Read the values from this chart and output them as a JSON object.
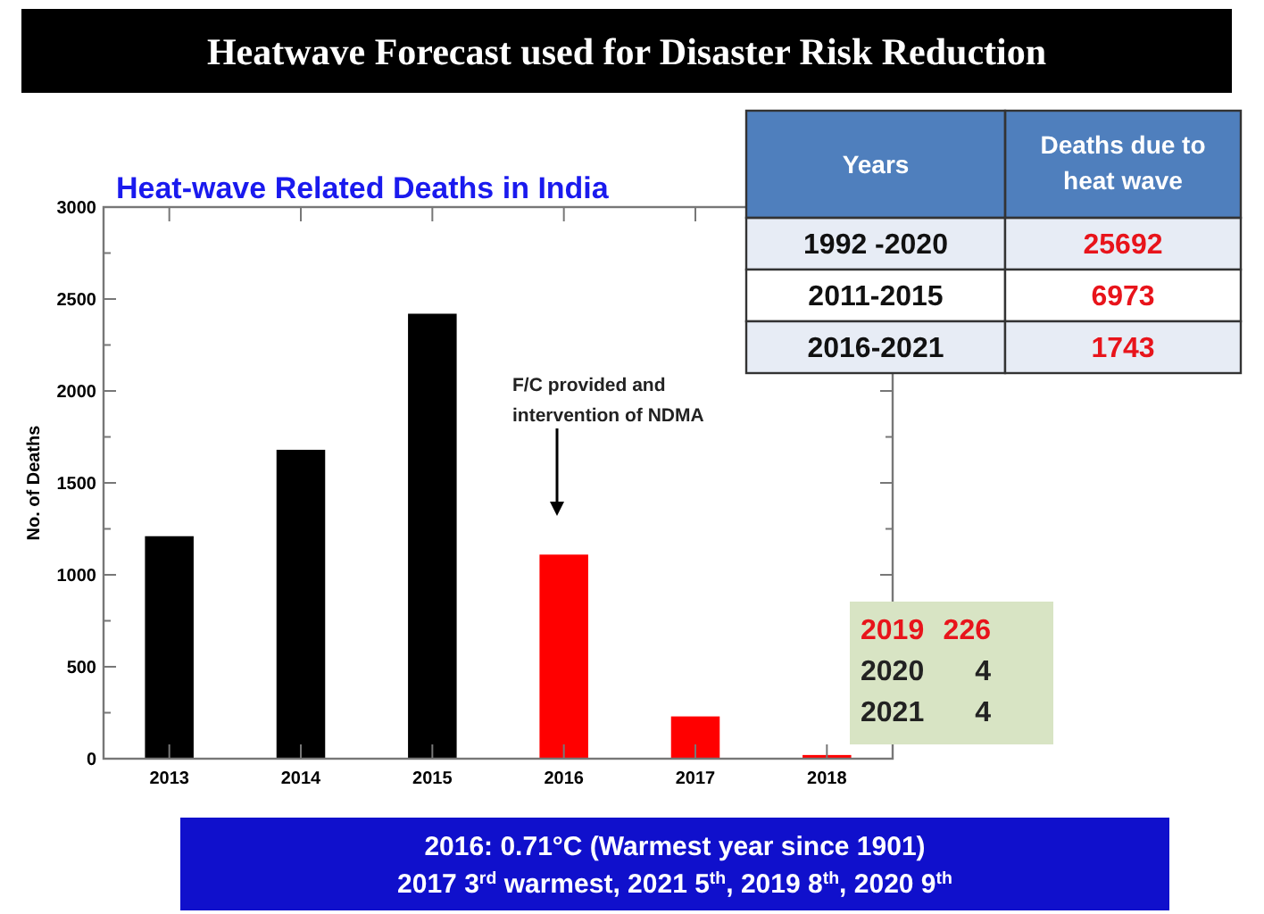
{
  "chart_data": {
    "type": "bar",
    "title": "Heatwave Forecast used for Disaster Risk Reduction",
    "subtitle": "Heat-wave Related Deaths in India",
    "ylabel": "No. of Deaths",
    "categories": [
      "2013",
      "2014",
      "2015",
      "2016",
      "2017",
      "2018"
    ],
    "values": [
      1210,
      1680,
      2420,
      1110,
      230,
      20
    ],
    "colors": [
      "#000000",
      "#000000",
      "#000000",
      "#ff0000",
      "#ff0000",
      "#ff0000"
    ],
    "ylim": [
      0,
      3000
    ],
    "yticks": [
      0,
      {
        "value": 250,
        "label": null
      },
      500,
      {
        "value": 750,
        "label": null
      },
      1000,
      {
        "value": 1250,
        "label": null
      },
      1500,
      {
        "value": 1750,
        "label": null
      },
      2000,
      {
        "value": 2250,
        "label": null
      },
      2500,
      {
        "value": 2750,
        "label": null
      },
      3000
    ],
    "grid": false,
    "annotations": [
      "F/C provided and intervention of NDMA",
      "Years",
      "Deaths due to heat wave",
      "1992 -2020",
      "25692",
      "2011-2015",
      "6973",
      "2016-2021",
      "1743",
      "2019",
      "226",
      "2020",
      "4",
      "2021",
      "4",
      "2016: 0.71°C  (Warmest year since 1901)",
      "2017 3$^{rd}$ warmest, 2021 5$^{th}$, 2019 8$^{th}$, 2020 9$^{th}$"
    ]
  }
}
